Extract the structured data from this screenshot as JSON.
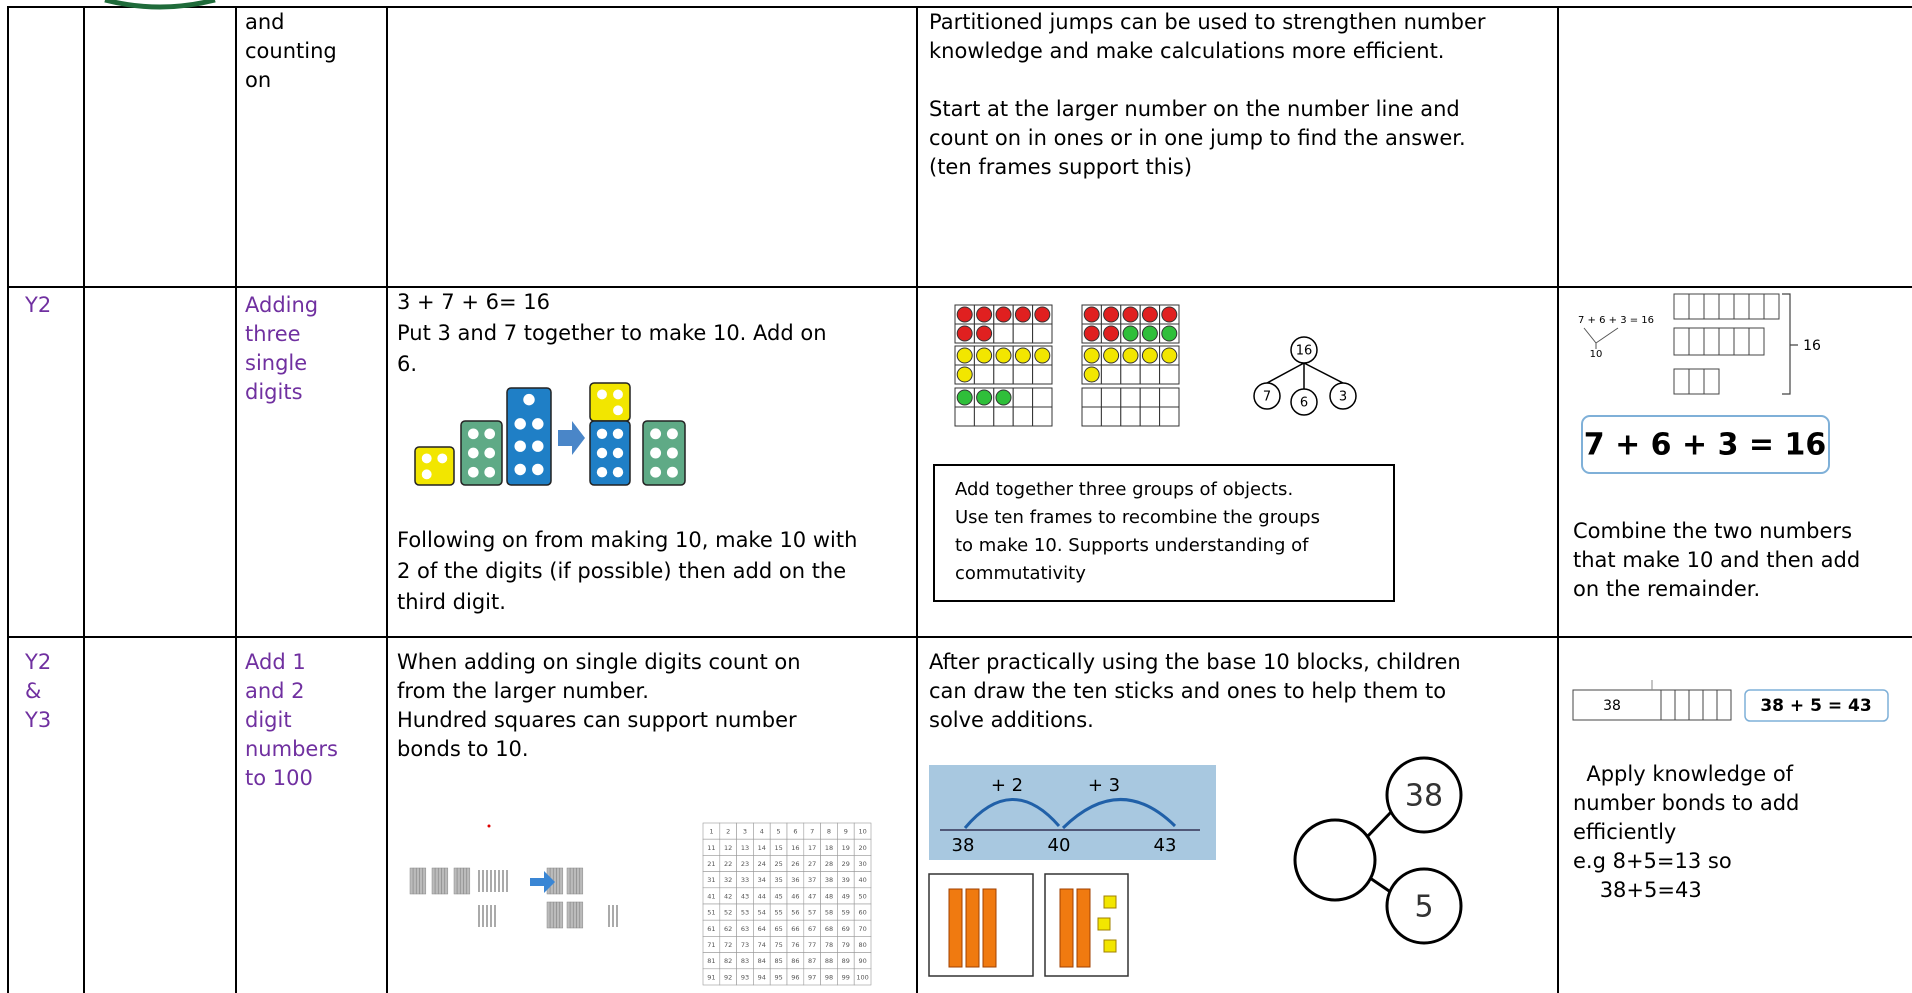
{
  "table": {
    "rows": [
      {
        "topic": [
          "and",
          "counting",
          "on"
        ],
        "representation": [
          [
            "Partitioned jumps can be used to strengthen number",
            "knowledge and make calculations more efficient."
          ],
          [
            "Start at the larger number on the number line and",
            "count on in ones or in one jump to find the answer.",
            "(ten frames support this)"
          ]
        ]
      },
      {
        "year": [
          "Y2"
        ],
        "topic": [
          "Adding",
          "three",
          "single",
          "digits"
        ],
        "method": [
          [
            "3 + 7 + 6= 16",
            "Put 3 and 7 together to make 10. Add on",
            "6."
          ],
          [
            "Following on from making 10, make 10 with",
            "2 of the digits (if possible) then add on the",
            "third digit."
          ]
        ],
        "representation_box": [
          "Add together three groups of objects.",
          "Use ten frames to recombine the groups",
          "to make 10. Supports understanding of",
          "commutativity"
        ],
        "part_whole": {
          "whole": "16",
          "parts": [
            "7",
            "6",
            "3"
          ]
        },
        "strategy_labels": {
          "equation": "7 + 6 + 3 = 16",
          "bond": "10",
          "total": "16",
          "big_equation": "7 + 6 + 3 = 16"
        },
        "strategy": [
          [
            "Combine the two numbers",
            "that make 10 and then add",
            "on the remainder."
          ]
        ]
      },
      {
        "year": [
          "Y2",
          "&",
          "Y3"
        ],
        "topic": [
          "Add 1",
          "and 2",
          "digit",
          "numbers",
          "to 100"
        ],
        "method": [
          [
            "When adding on single digits count on",
            "from the larger number.",
            "Hundred squares can support number",
            "bonds to 10."
          ]
        ],
        "hundred_square": [
          1,
          2,
          3,
          4,
          5,
          6,
          7,
          8,
          9,
          10,
          11,
          12,
          13,
          14,
          15,
          16,
          17,
          18,
          19,
          20,
          21,
          22,
          23,
          24,
          25,
          26,
          27,
          28,
          29,
          30,
          31,
          32,
          33,
          34,
          35,
          36,
          37,
          38,
          39,
          40,
          41,
          42,
          43,
          44,
          45,
          46,
          47,
          48,
          49,
          50,
          51,
          52,
          53,
          54,
          55,
          56,
          57,
          58,
          59,
          60,
          61,
          62,
          63,
          64,
          65,
          66,
          67,
          68,
          69,
          70,
          71,
          72,
          73,
          74,
          75,
          76,
          77,
          78,
          79,
          80,
          81,
          82,
          83,
          84,
          85,
          86,
          87,
          88,
          89,
          90,
          91,
          92,
          93,
          94,
          95,
          96,
          97,
          98,
          99,
          100
        ],
        "representation": [
          [
            "After practically using the base 10 blocks, children",
            "can draw the ten sticks and ones to help them to",
            "solve additions."
          ]
        ],
        "number_line": {
          "jumps": [
            "+ 2",
            "+ 3"
          ],
          "marks": [
            "38",
            "40",
            "43"
          ]
        },
        "part_whole": {
          "parts": [
            "38",
            "5"
          ]
        },
        "strategy_labels": {
          "bar": "38",
          "equation": "38 + 5 = 43"
        },
        "strategy": [
          [
            "  Apply knowledge of",
            "number bonds to add",
            "efficiently",
            "e.g 8+5=13 so",
            "    38+5=43"
          ]
        ]
      }
    ]
  }
}
